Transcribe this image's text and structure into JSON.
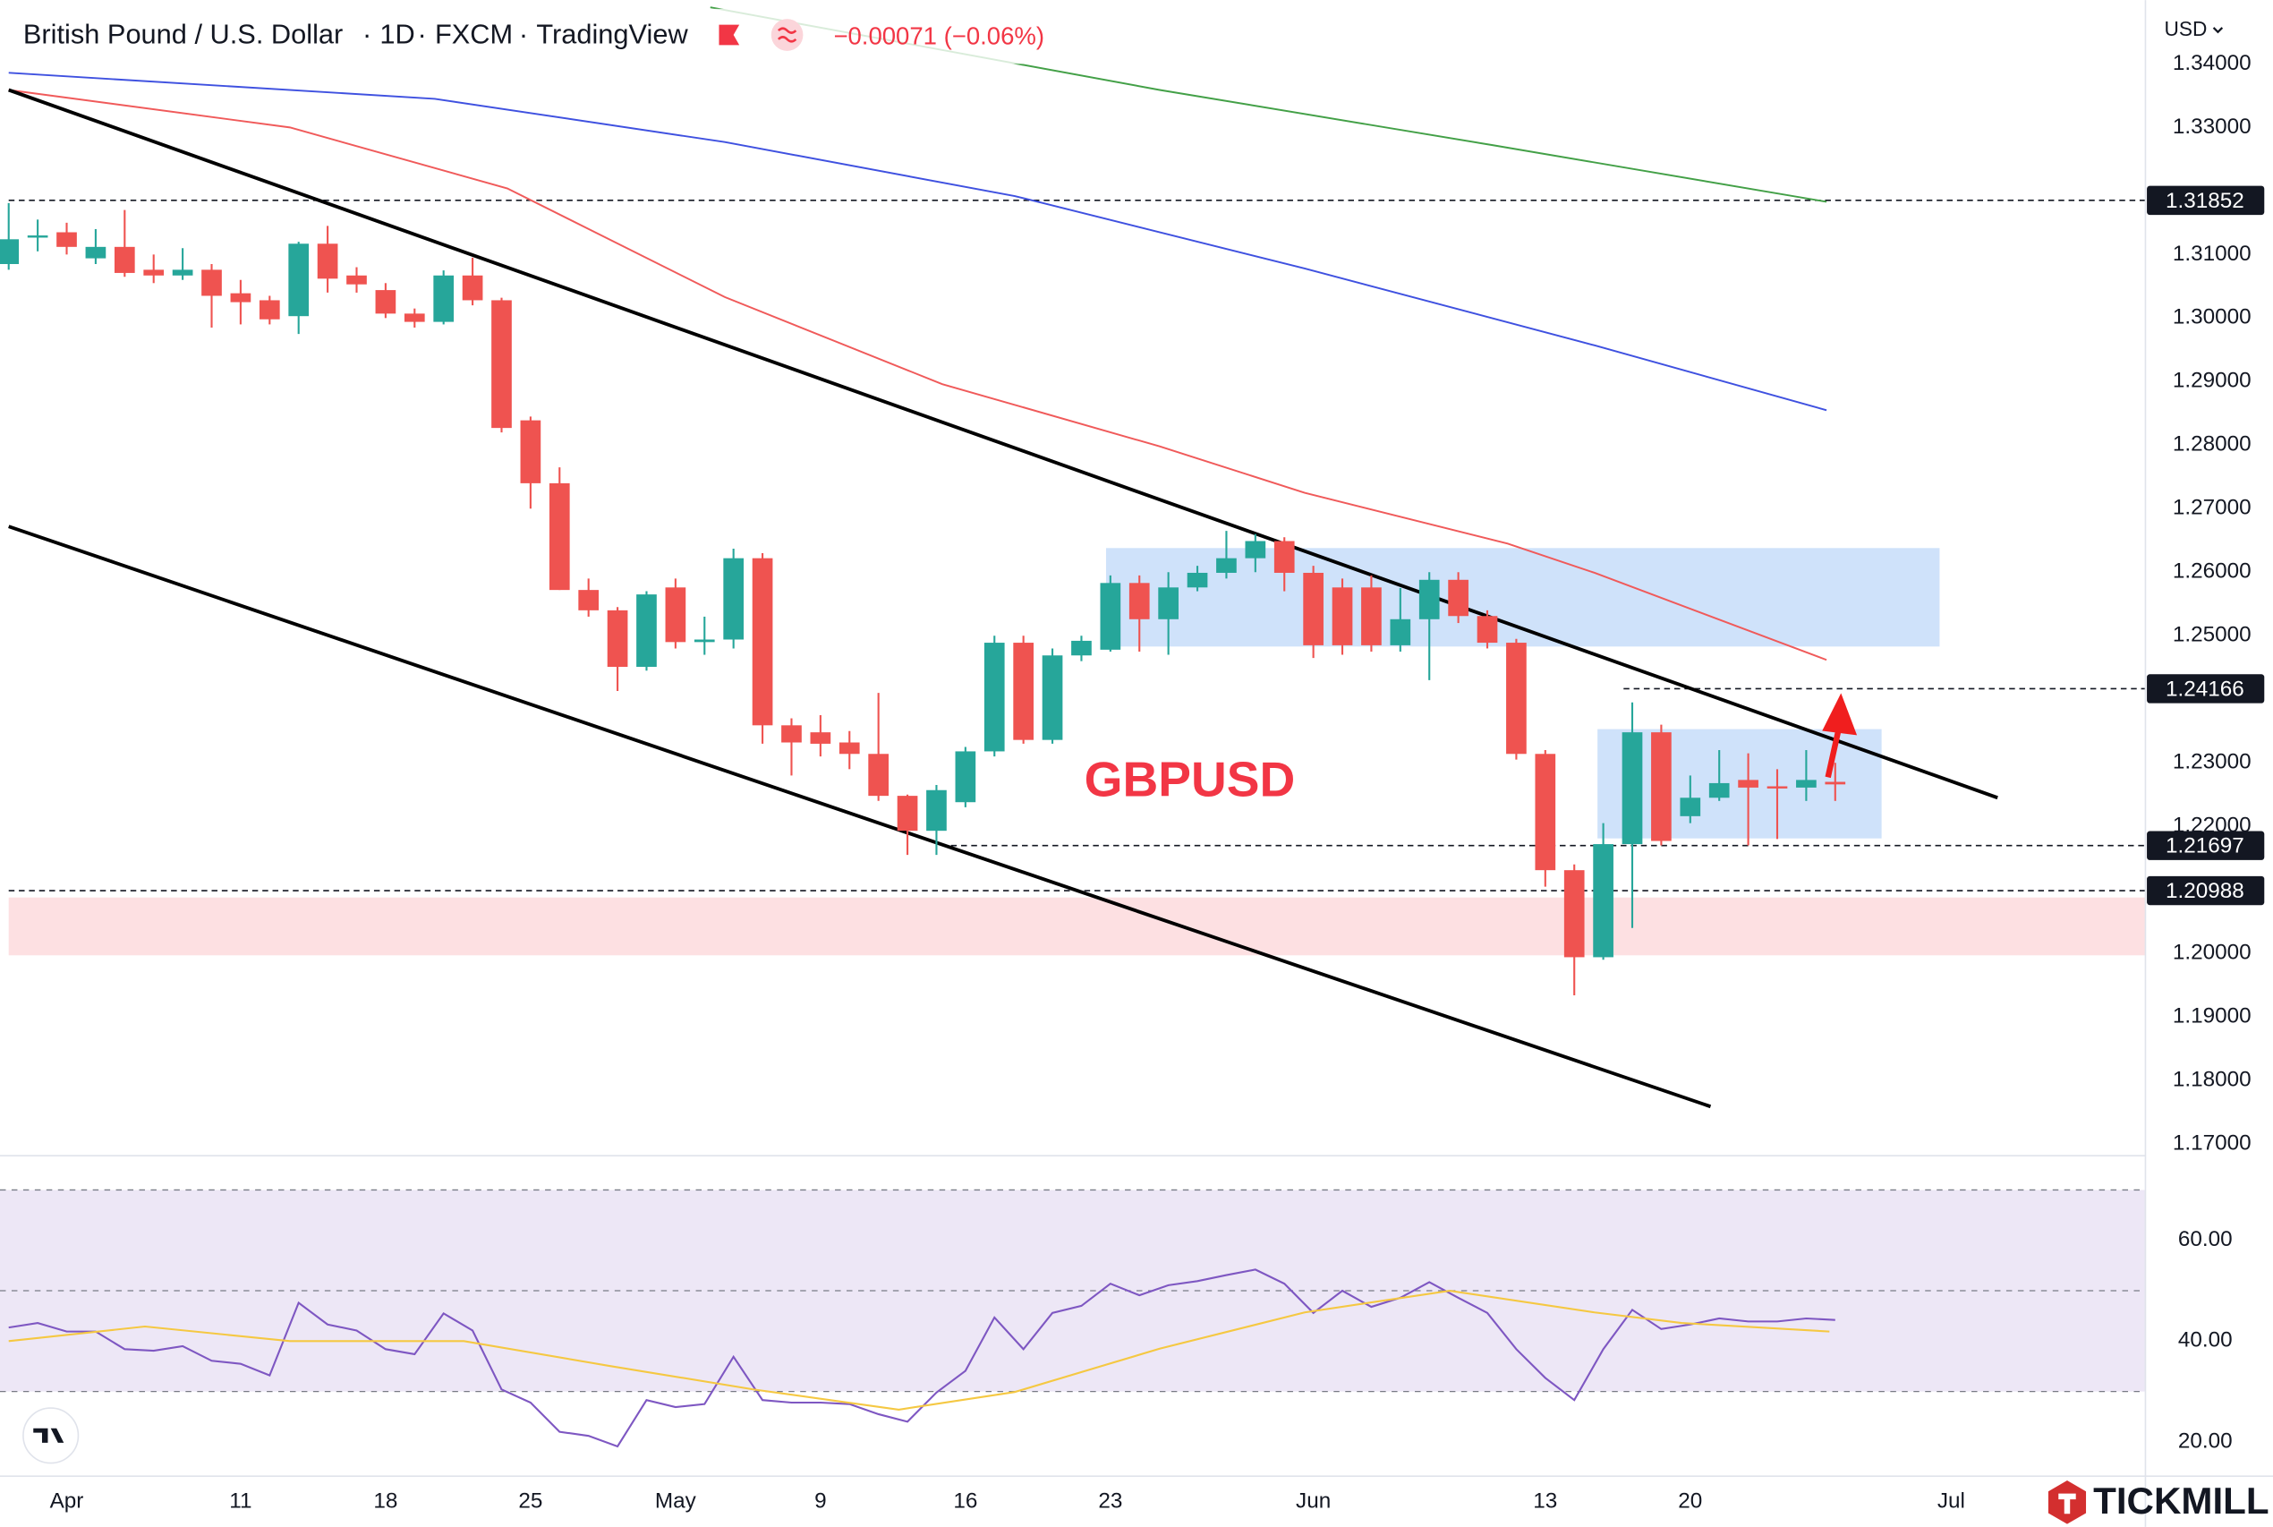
{
  "header": {
    "title": "British Pound / U.S. Dollar",
    "interval": "1D",
    "source": "FXCM",
    "platform": "TradingView",
    "change": "−0.00071 (−0.06%)",
    "currency": "USD"
  },
  "logo": "TICKMILL",
  "chart_data": [
    {
      "type": "candlestick",
      "open": [
        1.3085,
        1.3128,
        1.3135,
        1.3094,
        1.3112,
        1.3076,
        1.3067,
        1.3076,
        1.3039,
        1.3028,
        1.3003,
        1.3117,
        1.3067,
        1.3044,
        1.3007,
        1.2994,
        1.3067,
        1.3028,
        1.2839,
        1.274,
        1.2572,
        1.254,
        1.2451,
        1.2576,
        1.249,
        1.2494,
        1.2622,
        1.2359,
        1.2348,
        1.2332,
        1.2314,
        1.2248,
        1.2193,
        1.2238,
        1.2318,
        1.2489,
        1.2336,
        1.2469,
        1.2478,
        1.2583,
        1.2526,
        1.2576,
        1.2599,
        1.2622,
        1.2649,
        1.2599,
        1.2576,
        1.2576,
        1.2485,
        1.2526,
        1.2588,
        1.2531,
        1.2489,
        1.2314,
        1.2131,
        1.1994,
        1.2172,
        1.2348,
        1.2216,
        1.2245,
        1.2273,
        1.2263,
        1.2261,
        1.227
      ],
      "high": [
        1.3181,
        1.3155,
        1.315,
        1.314,
        1.317,
        1.31,
        1.311,
        1.3085,
        1.306,
        1.3035,
        1.312,
        1.3145,
        1.308,
        1.3055,
        1.3015,
        1.3075,
        1.3095,
        1.3032,
        1.2845,
        1.2765,
        1.259,
        1.2545,
        1.257,
        1.259,
        1.253,
        1.2637,
        1.263,
        1.237,
        1.2375,
        1.235,
        1.241,
        1.225,
        1.2265,
        1.2325,
        1.25,
        1.25,
        1.248,
        1.25,
        1.2595,
        1.2595,
        1.26,
        1.261,
        1.2665,
        1.266,
        1.2655,
        1.261,
        1.259,
        1.2595,
        1.2575,
        1.26,
        1.26,
        1.254,
        1.2495,
        1.232,
        1.214,
        1.2205,
        1.2395,
        1.236,
        1.228,
        1.232,
        1.2315,
        1.229,
        1.232,
        1.23
      ],
      "low": [
        1.3076,
        1.3105,
        1.31,
        1.3085,
        1.3065,
        1.3055,
        1.306,
        1.2985,
        1.299,
        1.299,
        1.2975,
        1.304,
        1.304,
        1.3,
        1.2985,
        1.299,
        1.302,
        1.282,
        1.27,
        1.2572,
        1.253,
        1.2413,
        1.2445,
        1.248,
        1.247,
        1.248,
        1.233,
        1.228,
        1.231,
        1.229,
        1.224,
        1.2155,
        1.2155,
        1.223,
        1.231,
        1.233,
        1.233,
        1.246,
        1.2475,
        1.2475,
        1.247,
        1.257,
        1.259,
        1.26,
        1.257,
        1.2465,
        1.247,
        1.2475,
        1.2475,
        1.243,
        1.252,
        1.248,
        1.2305,
        1.2105,
        1.1934,
        1.199,
        1.204,
        1.217,
        1.2205,
        1.224,
        1.217,
        1.218,
        1.224,
        1.224
      ],
      "close": [
        1.3124,
        1.313,
        1.3112,
        1.3112,
        1.3071,
        1.3067,
        1.3076,
        1.3035,
        1.3025,
        1.2998,
        1.3117,
        1.3062,
        1.3053,
        1.3007,
        1.2994,
        1.3067,
        1.3028,
        1.2827,
        1.274,
        1.2572,
        1.254,
        1.2451,
        1.2565,
        1.249,
        1.2494,
        1.2622,
        1.2359,
        1.2332,
        1.233,
        1.2314,
        1.2248,
        1.2193,
        1.2257,
        1.2318,
        1.2489,
        1.2336,
        1.2469,
        1.2492,
        1.2583,
        1.2526,
        1.2576,
        1.2599,
        1.2622,
        1.2649,
        1.2599,
        1.2485,
        1.2485,
        1.2485,
        1.2526,
        1.2588,
        1.2531,
        1.2489,
        1.2314,
        1.2131,
        1.1994,
        1.2172,
        1.2348,
        1.2177,
        1.2245,
        1.2268,
        1.2261,
        1.2261,
        1.2273,
        1.2266
      ],
      "up_color": "#26a69a",
      "down_color": "#ef5350",
      "xlim": [
        -0.3,
        73.7
      ],
      "xticks": [
        {
          "value": 2,
          "label": "Apr"
        },
        {
          "value": 8,
          "label": "11"
        },
        {
          "value": 13,
          "label": "18"
        },
        {
          "value": 18,
          "label": "25"
        },
        {
          "value": 23,
          "label": "May"
        },
        {
          "value": 28,
          "label": "9"
        },
        {
          "value": 33,
          "label": "16"
        },
        {
          "value": 38,
          "label": "23"
        },
        {
          "value": 45,
          "label": "Jun"
        },
        {
          "value": 53,
          "label": "13"
        },
        {
          "value": 58,
          "label": "20"
        },
        {
          "value": 67,
          "label": "Jul"
        }
      ],
      "ylim": [
        1.16816,
        1.35004
      ],
      "yticks": [
        {
          "value": 1.34,
          "label": "1.34000"
        },
        {
          "value": 1.33,
          "label": "1.33000"
        },
        {
          "value": 1.31,
          "label": "1.31000"
        },
        {
          "value": 1.3,
          "label": "1.30000"
        },
        {
          "value": 1.29,
          "label": "1.29000"
        },
        {
          "value": 1.28,
          "label": "1.28000"
        },
        {
          "value": 1.27,
          "label": "1.27000"
        },
        {
          "value": 1.26,
          "label": "1.26000"
        },
        {
          "value": 1.25,
          "label": "1.25000"
        },
        {
          "value": 1.23,
          "label": "1.23000"
        },
        {
          "value": 1.22,
          "label": "1.22000"
        },
        {
          "value": 1.2,
          "label": "1.20000"
        },
        {
          "value": 1.19,
          "label": "1.19000"
        },
        {
          "value": 1.18,
          "label": "1.18000"
        },
        {
          "value": 1.17,
          "label": "1.17000"
        }
      ],
      "series": [
        {
          "color": "#43a047",
          "x": [
            24.2,
            39.7,
            51.2,
            62.7
          ],
          "values": [
            1.3489,
            1.3359,
            1.3272,
            1.3183
          ]
        },
        {
          "color": "#3f51e0",
          "x": [
            0,
            14.7,
            24.7,
            34.7,
            44.7,
            54.7,
            62.7
          ],
          "values": [
            1.3386,
            1.3345,
            1.3277,
            1.3192,
            1.3078,
            1.2957,
            1.2855
          ]
        },
        {
          "color": "#f05a5a",
          "x": [
            0,
            9.7,
            17.2,
            24.7,
            32.2,
            39.7,
            44.7,
            51.7,
            54.7,
            62.7
          ],
          "values": [
            1.3359,
            1.33,
            1.3204,
            1.3033,
            1.2896,
            1.2798,
            1.2725,
            1.2645,
            1.2599,
            1.2462
          ]
        }
      ],
      "levels": [
        {
          "value": 1.31852,
          "from": 0
        },
        {
          "value": 1.24166,
          "from": 55.7
        },
        {
          "value": 1.21697,
          "from": 32.5
        },
        {
          "value": 1.20988,
          "from": 0
        }
      ],
      "zones": [
        {
          "x": [
            37.85,
            66.6
          ],
          "y": [
            1.2483,
            1.2638
          ],
          "color": "#cfe2fa"
        },
        {
          "x": [
            54.8,
            64.6
          ],
          "y": [
            1.2181,
            1.2353
          ],
          "color": "#cfe2fa"
        },
        {
          "x": [
            0,
            73.7
          ],
          "y": [
            1.1997,
            1.2088
          ],
          "color": "#fde0e2"
        }
      ],
      "trendlines": [
        {
          "x": [
            0,
            68.6
          ],
          "y": [
            1.3359,
            1.2245
          ]
        },
        {
          "x": [
            0,
            58.7
          ],
          "y": [
            1.2672,
            1.1759
          ]
        }
      ],
      "annotations": [
        {
          "text": "GBPUSD",
          "x": 37.1,
          "y": 1.2268,
          "color": "#f23645"
        }
      ]
    },
    {
      "type": "line",
      "xlim": [
        -0.3,
        73.7
      ],
      "ylim": [
        13.2,
        76.8
      ],
      "yticks": [
        {
          "value": 60,
          "label": "60.00"
        },
        {
          "value": 40,
          "label": "40.00"
        },
        {
          "value": 20,
          "label": "20.00"
        }
      ],
      "band": [
        30,
        70
      ],
      "midline": 50,
      "band_color": "#ede7f6",
      "series": [
        {
          "color": "#7e57c2",
          "values": [
            42.7,
            43.6,
            41.9,
            41.9,
            38.4,
            38.1,
            39,
            36.1,
            35.5,
            33.2,
            47.6,
            43.3,
            42.1,
            38.4,
            37.4,
            45.5,
            42.1,
            30.4,
            27.8,
            22,
            21.2,
            19.1,
            28.3,
            26.9,
            27.5,
            36.9,
            28.3,
            27.8,
            27.8,
            27.5,
            25.5,
            24,
            29.8,
            34.1,
            44.7,
            38.4,
            45.6,
            47,
            51.4,
            49.1,
            51.1,
            51.9,
            53.1,
            54.2,
            51.4,
            45.6,
            50,
            46.8,
            48.6,
            51.7,
            48.6,
            45.6,
            38.4,
            32.7,
            28.3,
            38.4,
            46.2,
            42.4,
            43.3,
            44.5,
            43.9,
            43.9,
            44.5,
            44.2
          ]
        },
        {
          "color": "#f5c842",
          "x": [
            0,
            4.7,
            9.7,
            15.7,
            20.7,
            25.7,
            30.7,
            34.7,
            39.7,
            44.7,
            49.7,
            54.7,
            57.7,
            62.8
          ],
          "values": [
            40,
            42.9,
            40,
            40,
            35.1,
            30.4,
            26.4,
            29.9,
            38.5,
            45.7,
            50,
            45.7,
            43.6,
            41.9
          ]
        }
      ]
    }
  ]
}
